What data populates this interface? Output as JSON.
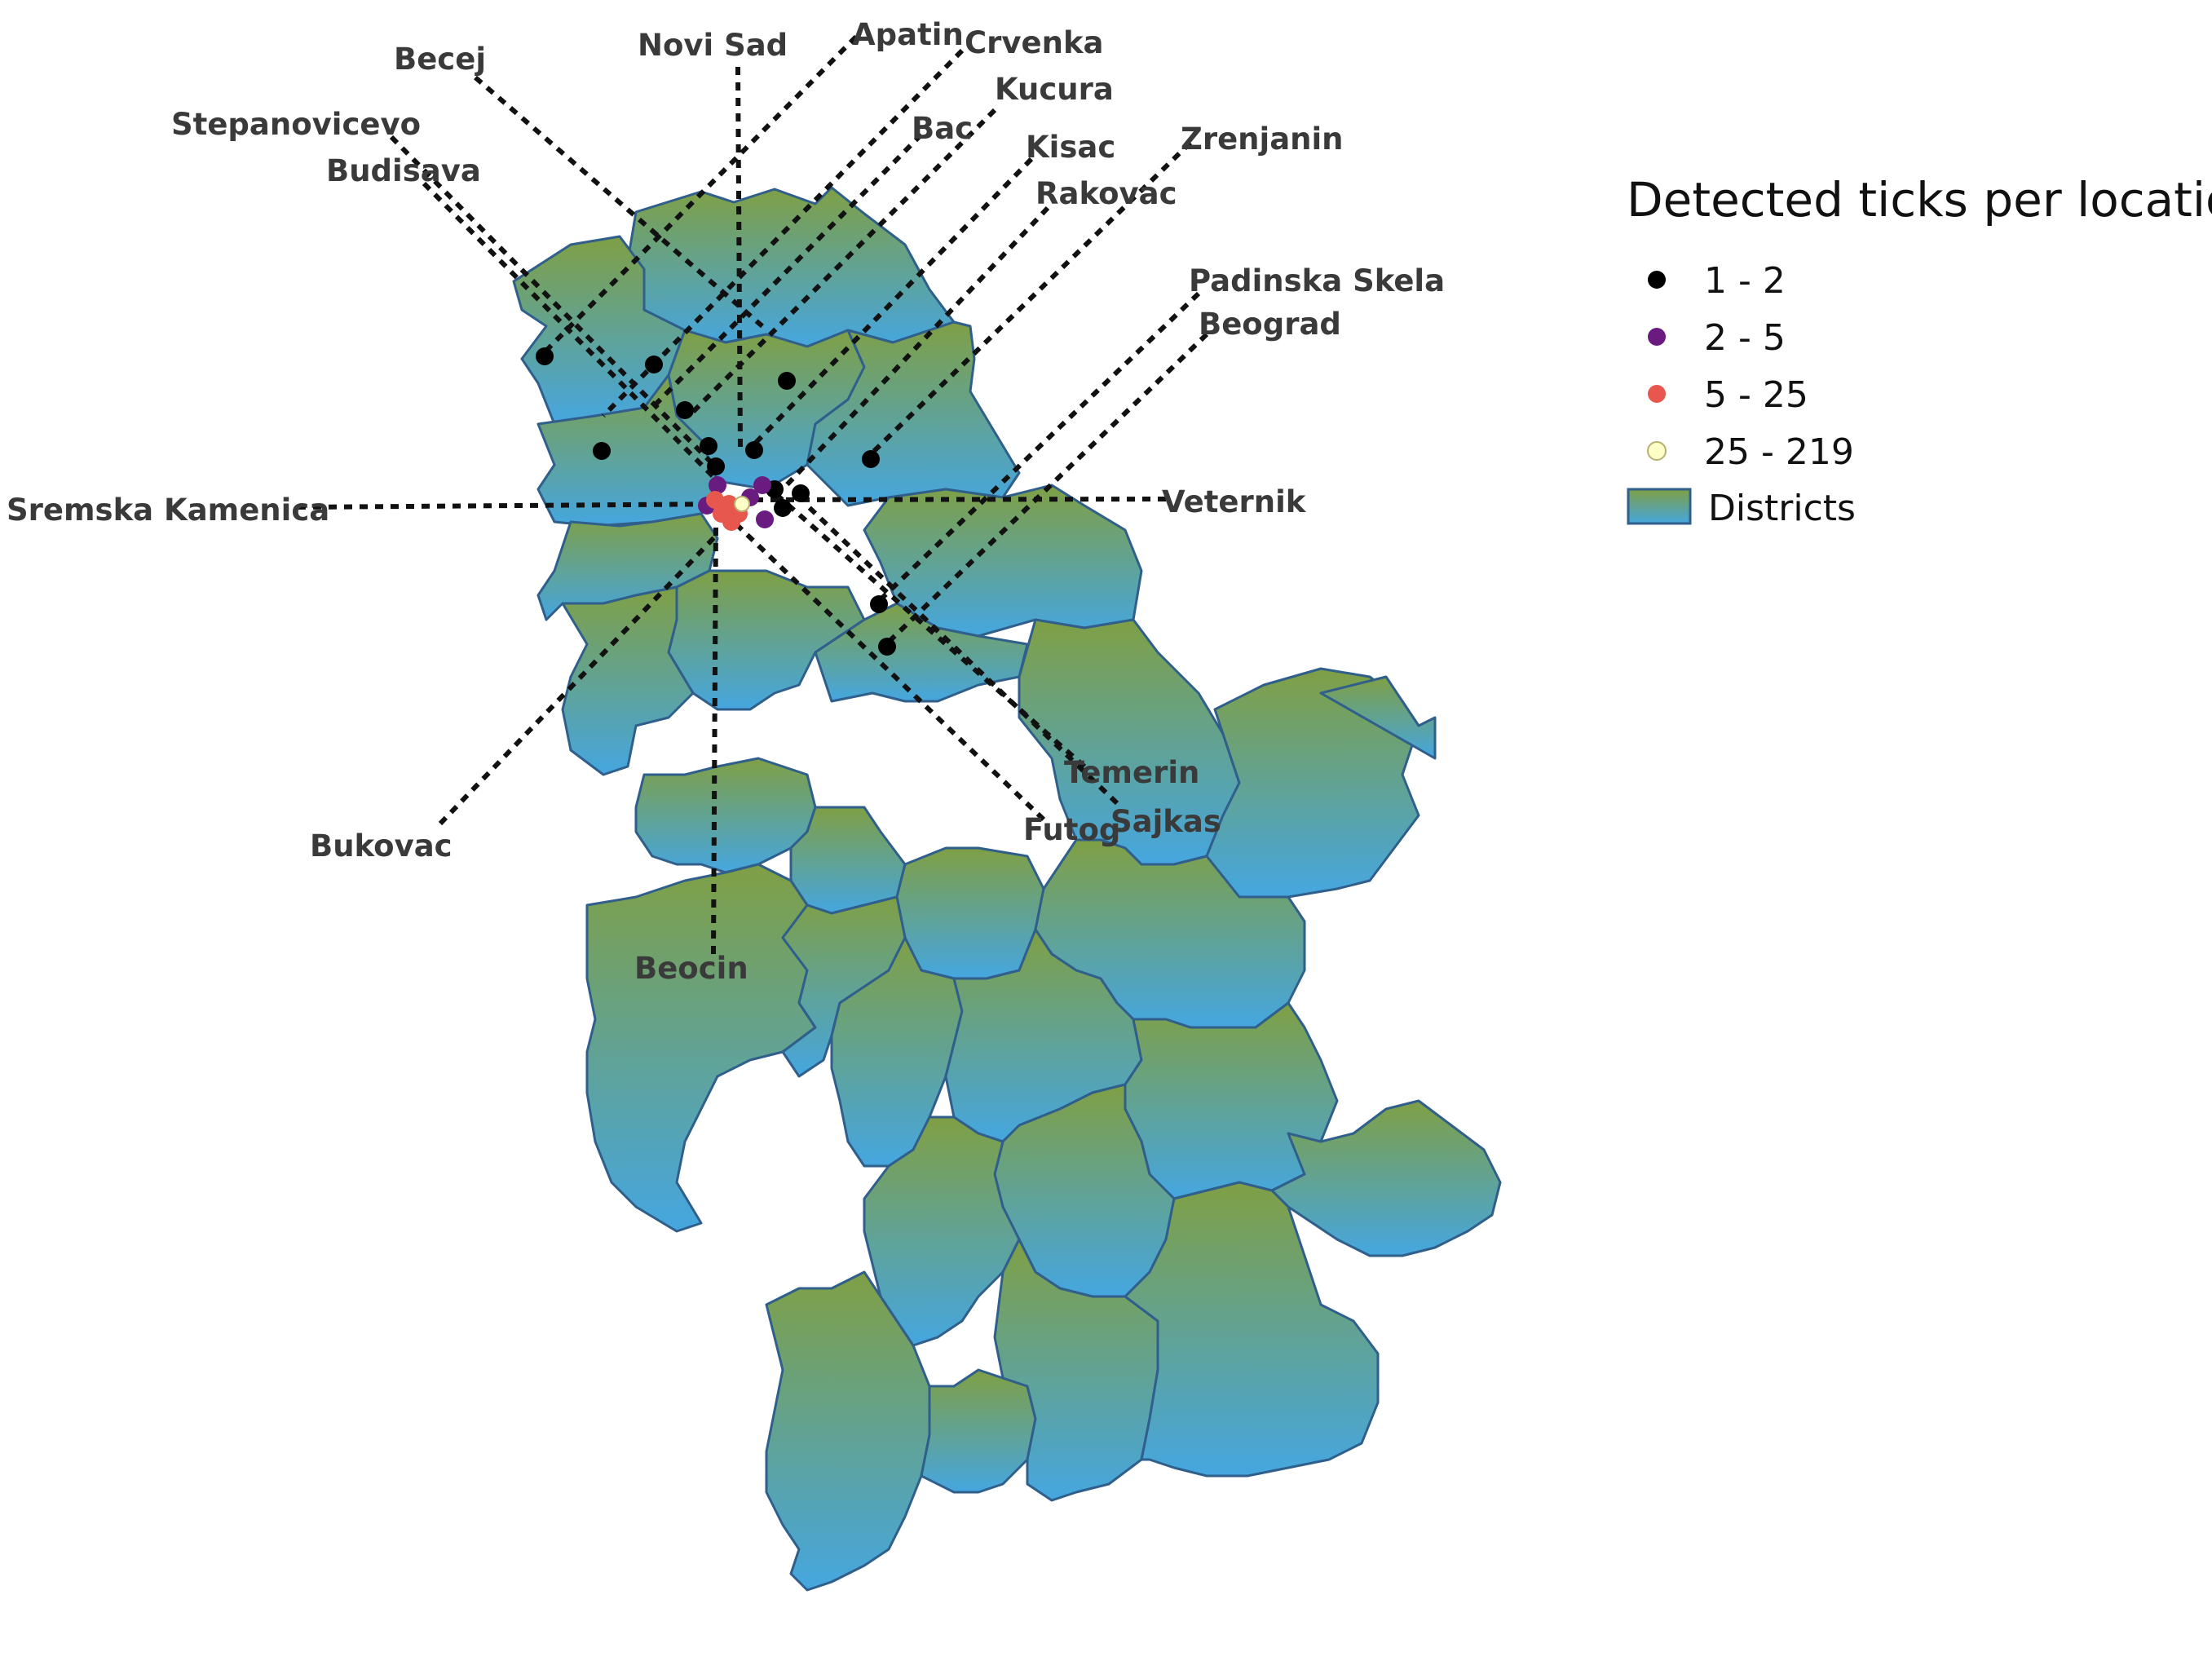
{
  "legend": {
    "title": "Detected ticks per location",
    "classes": [
      {
        "label": "1 - 2",
        "color": "#000000"
      },
      {
        "label": "2 - 5",
        "color": "#6a1b80"
      },
      {
        "label": "5 - 25",
        "color": "#e8574e"
      },
      {
        "label": "25 - 219",
        "color": "#ffffc8"
      }
    ],
    "districts_label": "Districts",
    "district_gradient": {
      "top": "#7f9f44",
      "bottom": "#45a6e0"
    }
  },
  "places": [
    "Becej",
    "Novi Sad",
    "Apatin",
    "Crvenka",
    "Kucura",
    "Stepanovicevo",
    "Bac",
    "Kisac",
    "Zrenjanin",
    "Budisava",
    "Rakovac",
    "Padinska Skela",
    "Beograd",
    "Sremska Kamenica",
    "Veternik",
    "Temerin",
    "Futog",
    "Sajkas",
    "Bukovac",
    "Beocin"
  ]
}
